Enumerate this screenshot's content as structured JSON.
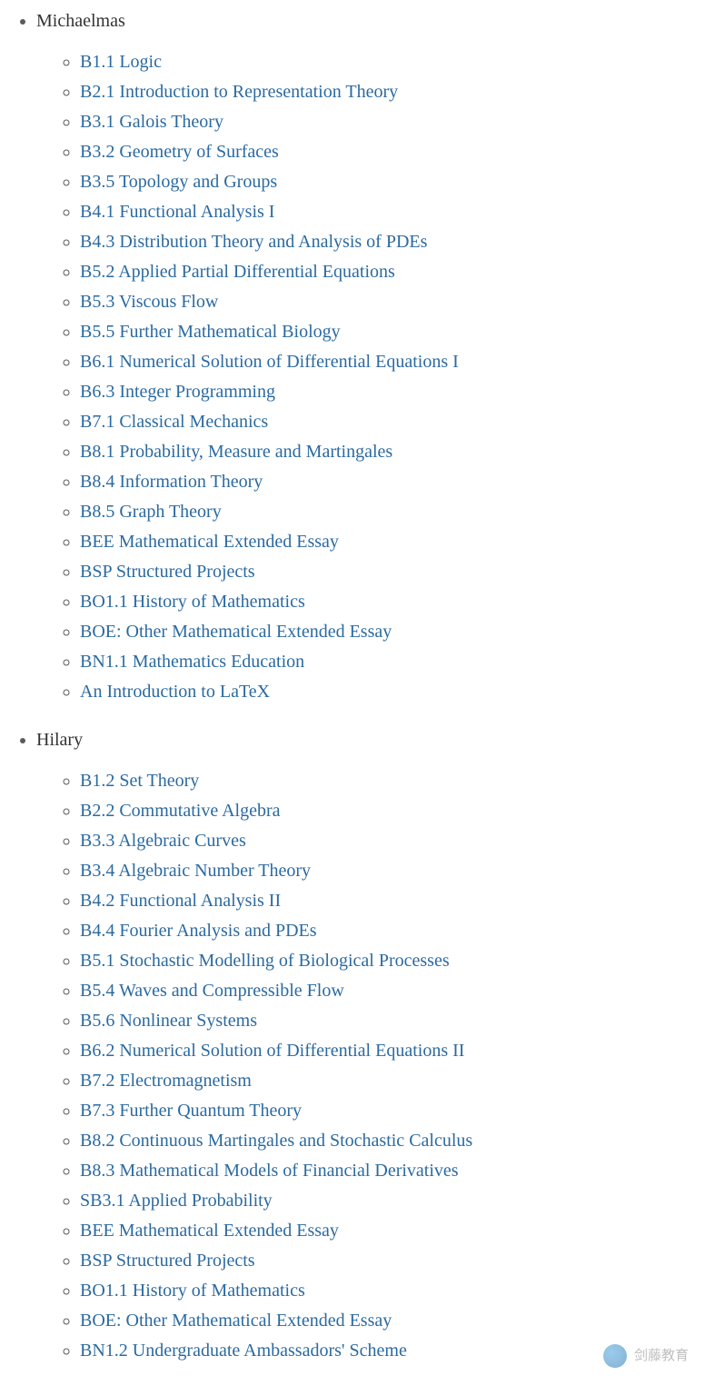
{
  "link_color": "#2b6aa0",
  "text_color": "#333333",
  "background_color": "#ffffff",
  "font_family": "Georgia, serif",
  "font_size_pt": 15,
  "terms": [
    {
      "name": "Michaelmas",
      "courses": [
        "B1.1 Logic",
        "B2.1 Introduction to Representation Theory",
        "B3.1 Galois Theory",
        "B3.2 Geometry of Surfaces",
        "B3.5 Topology and Groups",
        "B4.1 Functional Analysis I",
        "B4.3 Distribution Theory and Analysis of PDEs",
        "B5.2 Applied Partial Differential Equations",
        "B5.3 Viscous Flow",
        "B5.5 Further Mathematical Biology",
        "B6.1 Numerical Solution of Differential Equations I",
        "B6.3 Integer Programming",
        "B7.1 Classical Mechanics",
        "B8.1 Probability, Measure and Martingales",
        "B8.4 Information Theory",
        "B8.5 Graph Theory",
        "BEE Mathematical Extended Essay",
        "BSP Structured Projects",
        "BO1.1 History of Mathematics",
        "BOE: Other Mathematical Extended Essay",
        "BN1.1 Mathematics Education",
        "An Introduction to LaTeX"
      ]
    },
    {
      "name": "Hilary",
      "courses": [
        "B1.2 Set Theory",
        "B2.2 Commutative Algebra",
        "B3.3 Algebraic Curves",
        "B3.4 Algebraic Number Theory",
        "B4.2 Functional Analysis II",
        "B4.4 Fourier Analysis and PDEs",
        "B5.1 Stochastic Modelling of Biological Processes",
        "B5.4 Waves and Compressible Flow",
        "B5.6 Nonlinear Systems",
        "B6.2 Numerical Solution of Differential Equations II",
        "B7.2 Electromagnetism",
        "B7.3 Further Quantum Theory",
        "B8.2 Continuous Martingales and Stochastic Calculus",
        "B8.3 Mathematical Models of Financial Derivatives",
        "SB3.1 Applied Probability",
        "BEE Mathematical Extended Essay",
        "BSP Structured Projects",
        "BO1.1 History of Mathematics",
        "BOE: Other Mathematical Extended Essay",
        "BN1.2 Undergraduate Ambassadors' Scheme"
      ]
    }
  ],
  "watermark": {
    "text": "剑藤教育"
  }
}
